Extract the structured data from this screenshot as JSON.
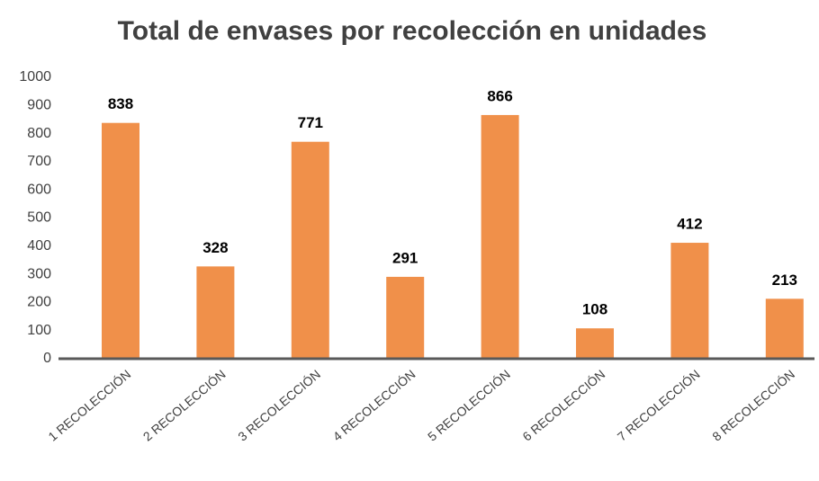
{
  "chart_data": {
    "type": "bar",
    "title": "Total de envases por recolección en unidades",
    "categories": [
      "1 RECOLECCIÓN",
      "2 RECOLECCIÓN",
      "3 RECOLECCIÓN",
      "4 RECOLECCIÓN",
      "5 RECOLECCIÓN",
      "6 RECOLECCIÓN",
      "7 RECOLECCIÓN",
      "8 RECOLECCIÓN"
    ],
    "values": [
      838,
      328,
      771,
      291,
      866,
      108,
      412,
      213
    ],
    "color": "#f0904a",
    "ylim": [
      0,
      1000
    ],
    "yticks": [
      0,
      100,
      200,
      300,
      400,
      500,
      600,
      700,
      800,
      900,
      1000
    ],
    "grid": false
  }
}
